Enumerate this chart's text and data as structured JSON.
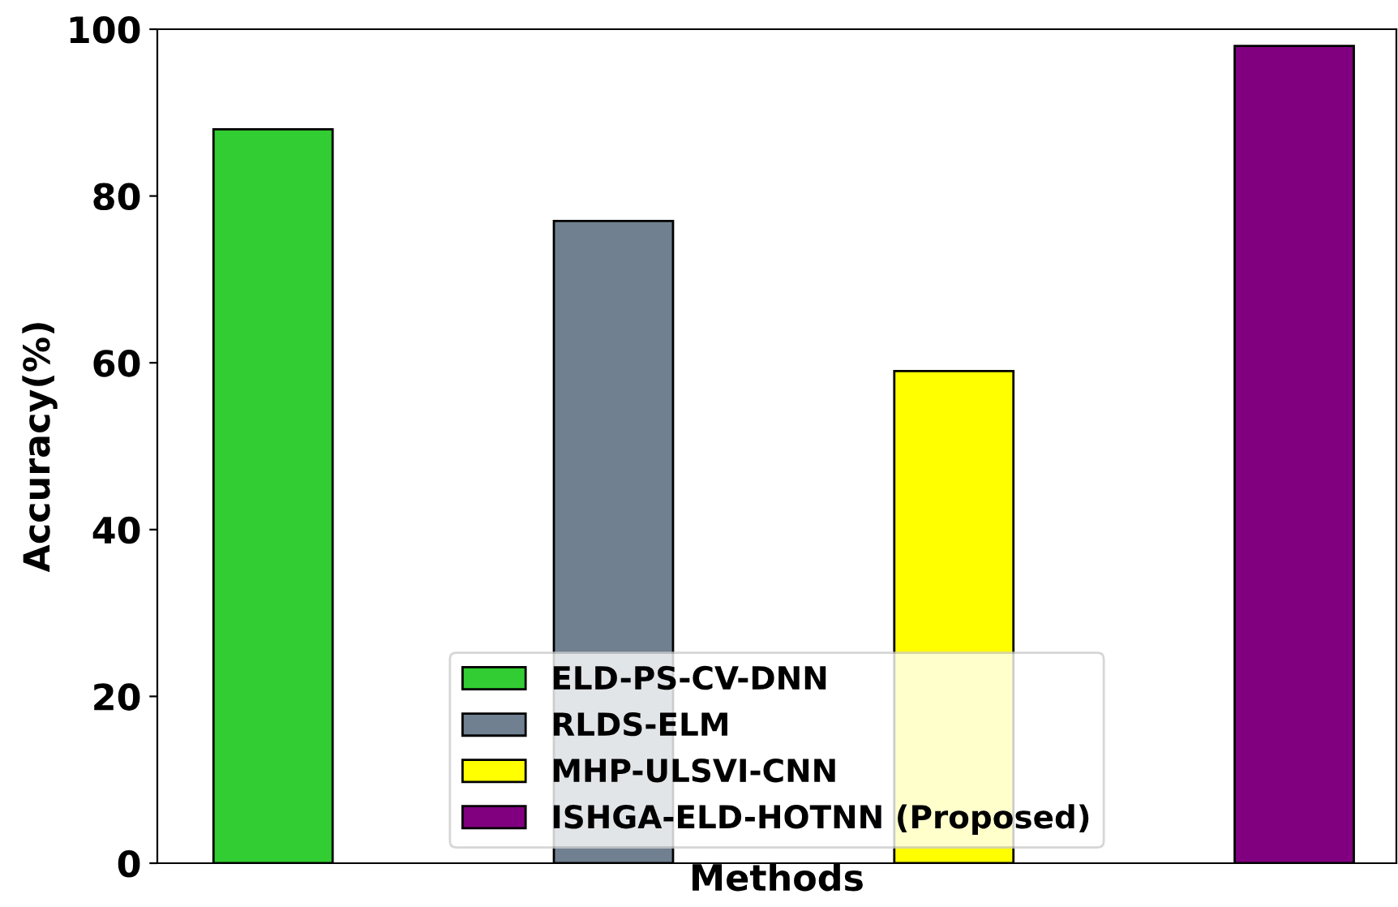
{
  "chart_data": {
    "type": "bar",
    "xlabel": "Methods",
    "ylabel": "Accuracy(%)",
    "categories": [
      null,
      null,
      null,
      null
    ],
    "series": [
      {
        "name": "ELD-PS-CV-DNN",
        "color": "#32cd32",
        "values": [
          88,
          null,
          null,
          null
        ]
      },
      {
        "name": "RLDS-ELM",
        "color": "#708090",
        "values": [
          null,
          77,
          null,
          null
        ]
      },
      {
        "name": "MHP-ULSVI-CNN",
        "color": "#ffff00",
        "values": [
          null,
          null,
          59,
          null
        ]
      },
      {
        "name": "ISHGA-ELD-HOTNN (Proposed)",
        "color": "#800080",
        "values": [
          null,
          null,
          null,
          98
        ]
      }
    ],
    "ylim": [
      0,
      100
    ],
    "yticks": [
      0,
      20,
      40,
      60,
      80,
      100
    ],
    "grid": false,
    "legend": "bottom",
    "tick_labels": "y"
  }
}
